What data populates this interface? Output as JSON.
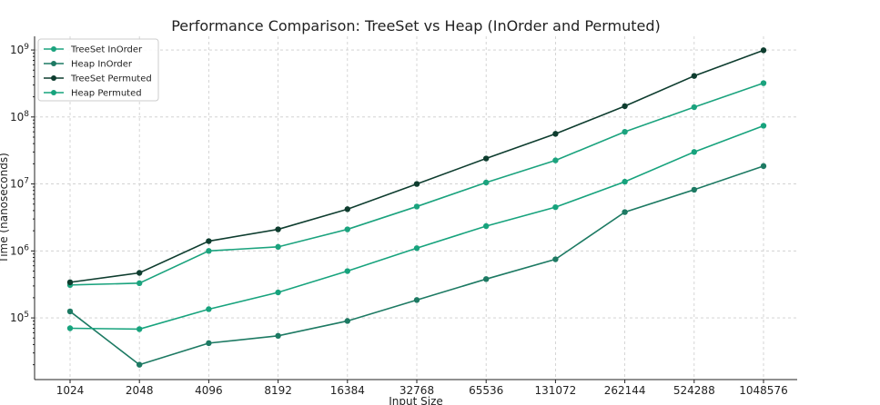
{
  "chart_data": {
    "type": "line",
    "title": "Performance Comparison: TreeSet vs Heap (InOrder and Permuted)",
    "xlabel": "Input Size",
    "ylabel": "Time (nanoseconds)",
    "yscale": "log",
    "ylim": [
      12000,
      1600000000
    ],
    "grid": true,
    "legend_position": "top-left",
    "categories": [
      "1024",
      "2048",
      "4096",
      "8192",
      "16384",
      "32768",
      "65536",
      "131072",
      "262144",
      "524288",
      "1048576"
    ],
    "ytick_labels": [
      "10^5",
      "10^6",
      "10^7",
      "10^8",
      "10^9"
    ],
    "ytick_values": [
      100000,
      1000000,
      10000000,
      100000000,
      1000000000
    ],
    "series": [
      {
        "name": "TreeSet InOrder",
        "color": "#1ba37e",
        "values": [
          310000,
          330000,
          1000000,
          1150000,
          2100000,
          4600000,
          10500000,
          22500000,
          60000000,
          140000000,
          320000000
        ]
      },
      {
        "name": "Heap InOrder",
        "color": "#1d7a63",
        "values": [
          125000,
          20000,
          42000,
          54000,
          90000,
          185000,
          380000,
          750000,
          3800000,
          8200000,
          18500000
        ]
      },
      {
        "name": "TreeSet Permuted",
        "color": "#0e3d2f",
        "values": [
          340000,
          470000,
          1400000,
          2100000,
          4200000,
          10000000,
          24000000,
          56000000,
          145000000,
          410000000,
          990000000
        ]
      },
      {
        "name": "Heap Permuted",
        "color": "#17a37d",
        "values": [
          70000,
          68000,
          135000,
          240000,
          500000,
          1100000,
          2350000,
          4500000,
          10800000,
          30000000,
          74000000
        ]
      }
    ]
  }
}
